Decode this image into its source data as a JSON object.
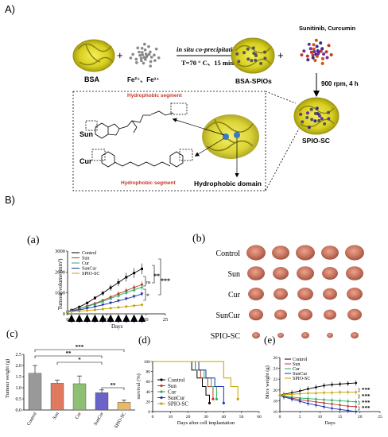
{
  "panelA": {
    "label": "A)",
    "bsa": "BSA",
    "fe": "Fe²⁺、Fe³⁺",
    "step1_line1": "in situ co-precipitation",
    "step1_line2": "T=70 ° C、15 min",
    "bsa_spio": "BSA-SPIOs",
    "drugs": "Sunitinib, Curcumin",
    "step2": "900 rpm, 4 h",
    "spio_sc": "SPIO-SC",
    "sun": "Sun",
    "cur": "Cur",
    "hydrophobic_segment": "Hydrophobic segment",
    "hydrophobic_domain": "Hydrophobic domain"
  },
  "panelB": {
    "label": "B)",
    "a": {
      "label": "(a)",
      "ylabel": "Tumour volume (mm³)",
      "xlabel": "Days",
      "sig_ns": "ns",
      "sig_star": "*",
      "sig_2star": "**",
      "sig_3star": "***"
    },
    "b": {
      "label": "(b)",
      "rows": [
        "Control",
        "Sun",
        "Cur",
        "SunCur",
        "SPIO-SC"
      ]
    },
    "c": {
      "label": "(c)",
      "sig": [
        "***",
        "**",
        "*",
        "**"
      ]
    },
    "d": {
      "label": "(d)"
    },
    "e": {
      "label": "(e)",
      "sig": [
        "***",
        "***",
        "***",
        "***"
      ]
    }
  },
  "colors": {
    "control": "#000000",
    "sun": "#c0392b",
    "cur": "#27ae60",
    "suncur": "#1f2fb0",
    "spio": "#c8a000"
  },
  "chart_data": [
    {
      "type": "line",
      "title": "(a)",
      "xlabel": "Days",
      "ylabel": "Tumour volume (mm³)",
      "xlim": [
        0,
        25
      ],
      "ylim": [
        0,
        3000
      ],
      "xticks": [
        0,
        5,
        10,
        15,
        20,
        25
      ],
      "yticks": [
        0,
        1000,
        2000,
        3000
      ],
      "legend": "top-left",
      "x": [
        0,
        1,
        3,
        5,
        7,
        9,
        11,
        13,
        15,
        17,
        19
      ],
      "series": [
        {
          "name": "Control",
          "values": [
            100,
            180,
            330,
            520,
            760,
            990,
            1250,
            1500,
            1750,
            1950,
            2150
          ]
        },
        {
          "name": "Sun",
          "values": [
            100,
            150,
            250,
            370,
            500,
            640,
            800,
            960,
            1110,
            1260,
            1400
          ]
        },
        {
          "name": "Cur",
          "values": [
            100,
            150,
            240,
            350,
            470,
            600,
            740,
            880,
            1020,
            1150,
            1280
          ]
        },
        {
          "name": "SunCur",
          "values": [
            100,
            130,
            190,
            260,
            340,
            430,
            520,
            620,
            720,
            830,
            950
          ]
        },
        {
          "name": "SPIO-SC",
          "values": [
            100,
            110,
            130,
            160,
            190,
            230,
            270,
            310,
            350,
            390,
            430
          ]
        }
      ]
    },
    {
      "type": "bar",
      "title": "(c)",
      "ylabel": "Tumour weight (g)",
      "categories": [
        "Control",
        "Sun",
        "Cur",
        "SunCur",
        "SPIO-SC"
      ],
      "values": [
        1.65,
        1.2,
        1.18,
        0.78,
        0.35
      ],
      "errors": [
        0.35,
        0.15,
        0.35,
        0.12,
        0.1
      ],
      "ylim": [
        0,
        2.5
      ],
      "yticks": [
        0.0,
        0.5,
        1.0,
        1.5,
        2.0,
        2.5
      ]
    },
    {
      "type": "line",
      "title": "(d)",
      "xlabel": "Days after cell implantation",
      "ylabel": "survival (%)",
      "xlim": [
        0,
        60
      ],
      "ylim": [
        0,
        100
      ],
      "xticks": [
        0,
        10,
        20,
        30,
        40,
        50,
        60
      ],
      "yticks": [
        0,
        20,
        40,
        60,
        80,
        100
      ],
      "legend": "center-left",
      "series": [
        {
          "name": "Control",
          "x": [
            0,
            22,
            22,
            25,
            25,
            28,
            28,
            30,
            30,
            32,
            32
          ],
          "values": [
            100,
            100,
            83,
            83,
            67,
            67,
            50,
            50,
            33,
            33,
            17
          ]
        },
        {
          "name": "Sun",
          "x": [
            0,
            24,
            24,
            27,
            27,
            31,
            31,
            34,
            34
          ],
          "values": [
            100,
            100,
            83,
            83,
            67,
            67,
            50,
            50,
            25
          ]
        },
        {
          "name": "Cur",
          "x": [
            0,
            24,
            24,
            29,
            29,
            33,
            33,
            36,
            36
          ],
          "values": [
            100,
            100,
            83,
            83,
            67,
            67,
            50,
            50,
            25
          ]
        },
        {
          "name": "SunCur",
          "x": [
            0,
            26,
            26,
            30,
            30,
            35,
            35,
            40,
            40
          ],
          "values": [
            100,
            100,
            83,
            83,
            67,
            67,
            50,
            50,
            17
          ]
        },
        {
          "name": "SPIO-SC",
          "x": [
            0,
            40,
            40,
            44,
            44,
            48,
            48
          ],
          "values": [
            100,
            100,
            67,
            67,
            50,
            50,
            25
          ]
        }
      ]
    },
    {
      "type": "line",
      "title": "(e)",
      "xlabel": "Days",
      "ylabel": "Mice weight (g)",
      "xlim": [
        0,
        25
      ],
      "ylim": [
        16,
        26
      ],
      "xticks": [
        0,
        5,
        10,
        15,
        20,
        25
      ],
      "yticks": [
        16,
        18,
        20,
        22,
        24,
        26
      ],
      "legend": "top-left",
      "x": [
        0,
        1,
        3,
        5,
        7,
        9,
        11,
        13,
        15,
        17,
        19
      ],
      "series": [
        {
          "name": "Control",
          "values": [
            19.0,
            19.2,
            19.5,
            19.8,
            20.2,
            20.5,
            20.8,
            21.0,
            21.1,
            21.2,
            21.3
          ]
        },
        {
          "name": "Sun",
          "values": [
            19.0,
            18.8,
            18.5,
            18.2,
            18.0,
            17.8,
            17.6,
            17.4,
            17.2,
            17.0,
            16.9
          ]
        },
        {
          "name": "Cur",
          "values": [
            19.0,
            18.9,
            18.7,
            18.5,
            18.4,
            18.3,
            18.2,
            18.1,
            18.0,
            17.9,
            17.8
          ]
        },
        {
          "name": "SunCur",
          "values": [
            19.0,
            18.7,
            18.3,
            17.9,
            17.5,
            17.2,
            16.9,
            16.6,
            16.4,
            16.2,
            16.0
          ]
        },
        {
          "name": "SPIO-SC",
          "values": [
            19.0,
            19.1,
            19.2,
            19.3,
            19.4,
            19.4,
            19.5,
            19.5,
            19.6,
            19.6,
            19.6
          ]
        }
      ]
    }
  ]
}
